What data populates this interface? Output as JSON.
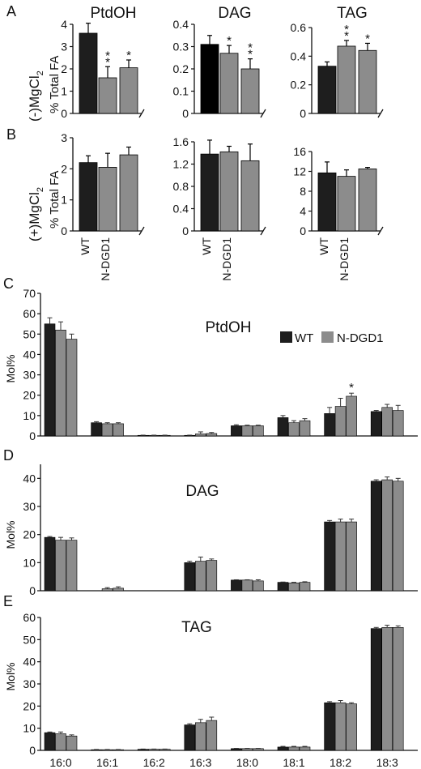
{
  "colors": {
    "wt": "#1e1e1e",
    "ndgd1": "#8c8c8c",
    "panel_a_dag_wt": "#000000",
    "axis": "#111111"
  },
  "labels": {
    "panel_a": "A",
    "panel_b": "B",
    "panel_c": "C",
    "panel_d": "D",
    "panel_e": "E",
    "row_a": "(-)MgCl",
    "row_b": "(+)MgCl",
    "row_sub": "2",
    "ylabel_total": "% Total FA",
    "ylabel_mol": "Mol%",
    "x_wt": "WT",
    "x_ndgd1": "N-DGD1"
  },
  "legend": {
    "wt": "WT",
    "ndgd1": "N-DGD1"
  },
  "chart_data": [
    {
      "id": "A-PtdOH",
      "type": "bar",
      "title": "PtdOH",
      "categories": [
        "WT",
        "N-DGD1",
        "N-DGD1"
      ],
      "values": [
        3.6,
        1.6,
        2.05
      ],
      "errors": [
        0.45,
        0.5,
        0.35
      ],
      "stars": [
        "",
        "**",
        "*"
      ],
      "ylim": [
        0,
        4
      ],
      "yticks": [
        "0",
        "1",
        "2",
        "3",
        "4"
      ]
    },
    {
      "id": "A-DAG",
      "type": "bar",
      "title": "DAG",
      "categories": [
        "WT",
        "N-DGD1",
        "N-DGD1"
      ],
      "values": [
        0.31,
        0.27,
        0.2
      ],
      "errors": [
        0.04,
        0.035,
        0.045
      ],
      "stars": [
        "",
        "*",
        "**"
      ],
      "ylim": [
        0,
        0.4
      ],
      "yticks": [
        "0",
        "0.1",
        "0.2",
        "0.3",
        "0.4"
      ]
    },
    {
      "id": "A-TAG",
      "type": "bar",
      "title": "TAG",
      "categories": [
        "WT",
        "N-DGD1",
        "N-DGD1"
      ],
      "values": [
        0.33,
        0.47,
        0.44
      ],
      "errors": [
        0.03,
        0.04,
        0.05
      ],
      "stars": [
        "",
        "**",
        "*"
      ],
      "ylim": [
        0,
        0.6
      ],
      "yticks": [
        "0",
        "0.2",
        "0.4",
        "0.6"
      ]
    },
    {
      "id": "B-PtdOH",
      "type": "bar",
      "title": "",
      "categories": [
        "WT",
        "N-DGD1",
        "N-DGD1"
      ],
      "values": [
        2.2,
        2.05,
        2.45
      ],
      "errors": [
        0.22,
        0.45,
        0.25
      ],
      "stars": [
        "",
        "",
        ""
      ],
      "ylim": [
        0,
        3
      ],
      "yticks": [
        "0",
        "1",
        "2",
        "3"
      ]
    },
    {
      "id": "B-DAG",
      "type": "bar",
      "title": "",
      "categories": [
        "WT",
        "N-DGD1",
        "N-DGD1"
      ],
      "values": [
        1.38,
        1.42,
        1.26
      ],
      "errors": [
        0.25,
        0.1,
        0.3
      ],
      "stars": [
        "",
        "",
        ""
      ],
      "ylim": [
        0,
        1.6
      ],
      "yticks": [
        "0",
        "0.4",
        "0.8",
        "1.2",
        "1.6"
      ]
    },
    {
      "id": "B-TAG",
      "type": "bar",
      "title": "",
      "categories": [
        "WT",
        "N-DGD1",
        "N-DGD1"
      ],
      "values": [
        11.7,
        11.0,
        12.5
      ],
      "errors": [
        2.2,
        1.3,
        0.3
      ],
      "stars": [
        "",
        "",
        ""
      ],
      "ylim": [
        0,
        16
      ],
      "yticks": [
        "0",
        "4",
        "8",
        "12",
        "16"
      ]
    },
    {
      "id": "C",
      "type": "bar",
      "title": "PtdOH",
      "categories": [
        "16:0",
        "16:1",
        "16:2",
        "16:3",
        "18:0",
        "18:1",
        "18:2",
        "18:3"
      ],
      "series": [
        {
          "values": [
            55,
            6.5,
            0.3,
            0.3,
            5,
            9,
            11,
            12
          ],
          "errors": [
            3,
            0.5,
            0.1,
            0.1,
            0.5,
            1,
            3,
            0.5
          ]
        },
        {
          "values": [
            52,
            6,
            0.3,
            1,
            5,
            6.5,
            14.5,
            14
          ],
          "errors": [
            4,
            0.5,
            0.1,
            1,
            0.3,
            1,
            4,
            1.5
          ]
        },
        {
          "values": [
            47.5,
            6,
            0.3,
            1.2,
            5,
            7.5,
            19.5,
            12.5
          ],
          "errors": [
            2.5,
            0.5,
            0.1,
            0.5,
            0.3,
            1,
            1.5,
            2.5
          ]
        }
      ],
      "star": {
        "category": 6,
        "series": 2,
        "text": "*"
      },
      "ylabel": "Mol%",
      "ylim": [
        0,
        70
      ],
      "yticks": [
        "0",
        "10",
        "20",
        "30",
        "40",
        "50",
        "60",
        "70"
      ],
      "legend": "top-right"
    },
    {
      "id": "D",
      "type": "bar",
      "title": "DAG",
      "categories": [
        "16:0",
        "16:1",
        "16:2",
        "16:3",
        "18:0",
        "18:1",
        "18:2",
        "18:3"
      ],
      "series": [
        {
          "values": [
            19,
            0,
            0,
            10,
            3.8,
            3,
            24.5,
            39
          ],
          "errors": [
            0.3,
            0,
            0,
            0.5,
            0.1,
            0.1,
            0.5,
            0.5
          ]
        },
        {
          "values": [
            18,
            0.7,
            0,
            10.5,
            3.8,
            2.8,
            24.5,
            39.5
          ],
          "errors": [
            1,
            0.4,
            0,
            1.5,
            0.1,
            0.2,
            1,
            1
          ]
        },
        {
          "values": [
            18,
            0.9,
            0,
            10.8,
            3.5,
            3,
            24.5,
            39
          ],
          "errors": [
            0.8,
            0.5,
            0,
            0.5,
            0.4,
            0.2,
            1,
            1
          ]
        }
      ],
      "ylabel": "Mol%",
      "ylim": [
        0,
        45
      ],
      "yticks": [
        "0",
        "10",
        "20",
        "30",
        "40"
      ]
    },
    {
      "id": "E",
      "type": "bar",
      "title": "TAG",
      "categories": [
        "16:0",
        "16:1",
        "16:2",
        "16:3",
        "18:0",
        "18:1",
        "18:2",
        "18:3"
      ],
      "series": [
        {
          "values": [
            8,
            0.3,
            0.5,
            11.5,
            0.8,
            1.5,
            21.5,
            55
          ],
          "errors": [
            0.3,
            0.1,
            0.1,
            0.5,
            0.1,
            0.3,
            0.5,
            0.5
          ]
        },
        {
          "values": [
            7.5,
            0.3,
            0.5,
            12.5,
            0.8,
            1.5,
            21.5,
            55.5
          ],
          "errors": [
            0.8,
            0.1,
            0.1,
            1.5,
            0.1,
            0.3,
            1,
            1
          ]
        },
        {
          "values": [
            6.5,
            0.3,
            0.5,
            13.5,
            0.8,
            1.5,
            21,
            55.5
          ],
          "errors": [
            0.5,
            0.1,
            0.1,
            1.5,
            0.1,
            0.3,
            0.5,
            0.7
          ]
        }
      ],
      "ylabel": "Mol%",
      "ylim": [
        0,
        60
      ],
      "yticks": [
        "0",
        "10",
        "20",
        "30",
        "40",
        "50",
        "60"
      ]
    }
  ]
}
